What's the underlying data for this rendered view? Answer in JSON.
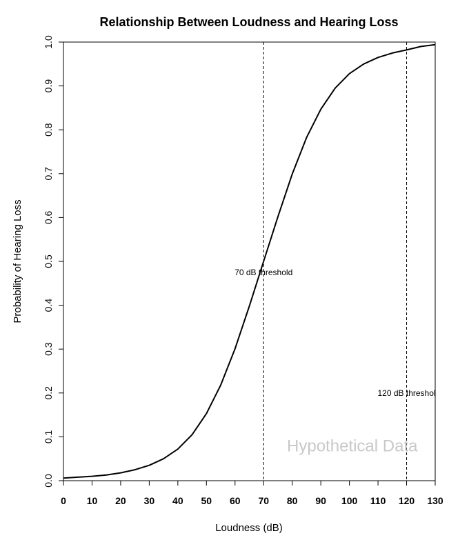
{
  "chart_data": {
    "type": "line",
    "title": "Relationship Between Loudness and Hearing Loss",
    "xlabel": "Loudness (dB)",
    "ylabel": "Probability of Hearing Loss",
    "xlim": [
      0,
      130
    ],
    "ylim": [
      0,
      1
    ],
    "x_ticks": [
      "0",
      "10",
      "20",
      "30",
      "40",
      "50",
      "60",
      "70",
      "80",
      "90",
      "100",
      "110",
      "120",
      "130"
    ],
    "y_ticks": [
      "0.0",
      "0.1",
      "0.2",
      "0.3",
      "0.4",
      "0.5",
      "0.6",
      "0.7",
      "0.8",
      "0.9",
      "1.0"
    ],
    "grid": false,
    "series": [
      {
        "x": [
          0,
          5,
          10,
          15,
          20,
          25,
          30,
          35,
          40,
          45,
          50,
          55,
          60,
          65,
          70,
          75,
          80,
          85,
          90,
          95,
          100,
          105,
          110,
          115,
          120,
          125,
          130
        ],
        "y": [
          0.006,
          0.008,
          0.01,
          0.013,
          0.018,
          0.025,
          0.035,
          0.05,
          0.072,
          0.105,
          0.153,
          0.218,
          0.301,
          0.398,
          0.5,
          0.602,
          0.699,
          0.782,
          0.847,
          0.895,
          0.928,
          0.95,
          0.965,
          0.975,
          0.982,
          0.99,
          0.994
        ]
      }
    ],
    "reference_lines": [
      {
        "x": 70,
        "label": "70 dB threshold",
        "label_y": 0.475
      },
      {
        "x": 120,
        "label": "120 dB threshol",
        "label_y": 0.2
      }
    ],
    "annotations": [
      {
        "text": "Hypothetical Data",
        "x": 101,
        "y": 0.08
      }
    ]
  }
}
